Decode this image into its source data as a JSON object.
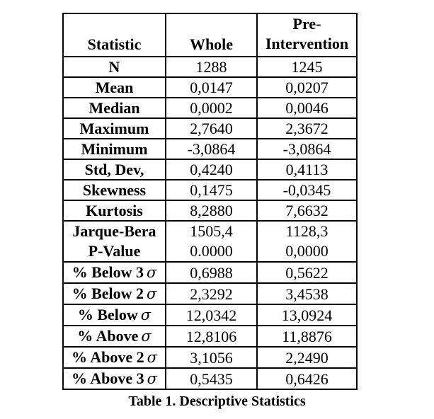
{
  "table": {
    "header": {
      "statistic": "Statistic",
      "whole": "Whole",
      "pre_line1": "Pre-",
      "pre_line2": "Intervention"
    },
    "rows": [
      {
        "label": "N",
        "whole": "1288",
        "pre": "1245"
      },
      {
        "label": "Mean",
        "whole": "0,0147",
        "pre": "0,0207"
      },
      {
        "label": "Median",
        "whole": "0,0002",
        "pre": "0,0046"
      },
      {
        "label": "Maximum",
        "whole": "2,7640",
        "pre": "2,3672"
      },
      {
        "label": "Minimum",
        "whole": "-3,0864",
        "pre": "-3,0864"
      },
      {
        "label": "Std, Dev,",
        "whole": "0,4240",
        "pre": "0,4113"
      },
      {
        "label": "Skewness",
        "whole": "0,1475",
        "pre": "-0,0345"
      },
      {
        "label": "Kurtosis",
        "whole": "8,2880",
        "pre": "7,6632"
      }
    ],
    "merged_row": {
      "label_line1": "Jarque-Bera",
      "label_line2": "P-Value",
      "whole_line1": "1505,4",
      "whole_line2": "0.0000",
      "pre_line1": "1128,3",
      "pre_line2": "0,0000"
    },
    "sigma_rows": [
      {
        "label": "% Below 3",
        "sigma": "σ",
        "whole": "0,6988",
        "pre": "0,5622"
      },
      {
        "label": "% Below 2",
        "sigma": "σ",
        "whole": "2,3292",
        "pre": "3,4538"
      },
      {
        "label": "% Below",
        "sigma": "σ",
        "whole": "12,0342",
        "pre": "13,0924"
      },
      {
        "label": "% Above",
        "sigma": "σ",
        "whole": "12,8106",
        "pre": "11,8876"
      },
      {
        "label": "% Above 2",
        "sigma": "σ",
        "whole": "3,1056",
        "pre": "2,2490"
      },
      {
        "label": "% Above 3",
        "sigma": "σ",
        "whole": "0,5435",
        "pre": "0,6426"
      }
    ],
    "caption": "Table 1. Descriptive Statistics"
  }
}
